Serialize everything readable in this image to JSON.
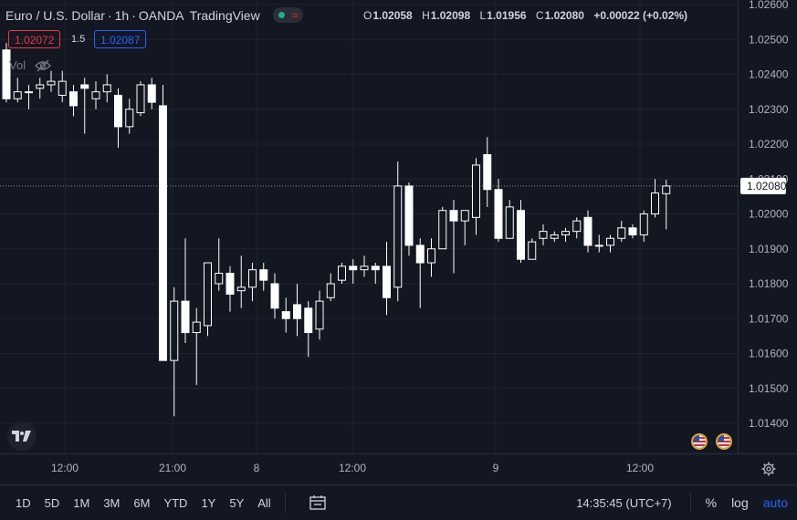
{
  "header": {
    "symbol": "Euro / U.S. Dollar",
    "interval": "1h",
    "broker": "OANDA",
    "platform": "TradingView"
  },
  "ohlc": {
    "o_label": "O",
    "o": "1.02058",
    "h_label": "H",
    "h": "1.02098",
    "l_label": "L",
    "l": "1.01956",
    "c_label": "C",
    "c": "1.02080",
    "change": "+0.00022 (+0.02%)"
  },
  "quote": {
    "bid": "1.02072",
    "spread": "1.5",
    "ask": "1.02087"
  },
  "volume": {
    "label": "Vol",
    "icon": "eye-off-icon"
  },
  "price_axis": {
    "ticks": [
      "1.02600",
      "1.02500",
      "1.02400",
      "1.02300",
      "1.02200",
      "1.02100",
      "1.02000",
      "1.01900",
      "1.01800",
      "1.01700",
      "1.01600",
      "1.01500",
      "1.01400"
    ],
    "current": "1.02080"
  },
  "time_axis": [
    "12:00",
    "21:00",
    "8",
    "12:00",
    "9",
    "12:00"
  ],
  "range_buttons": [
    "1D",
    "5D",
    "1M",
    "3M",
    "6M",
    "YTD",
    "1Y",
    "5Y",
    "All"
  ],
  "timezone": "14:35:45 (UTC+7)",
  "controls": {
    "percent": "%",
    "log": "log",
    "auto": "auto"
  },
  "colors": {
    "background": "#131722",
    "candle": "#ffffff",
    "grid": "#1f2330",
    "accent": "#2962ff",
    "bid": "#f23645"
  },
  "chart_data": {
    "type": "candlestick",
    "instrument": "EUR/USD",
    "ylim": [
      1.0135,
      1.0265
    ],
    "candles": [
      {
        "o": 1.0247,
        "h": 1.0249,
        "l": 1.0232,
        "c": 1.0233
      },
      {
        "o": 1.0233,
        "h": 1.0239,
        "l": 1.0232,
        "c": 1.0235
      },
      {
        "o": 1.0235,
        "h": 1.0237,
        "l": 1.023,
        "c": 1.0235
      },
      {
        "o": 1.0236,
        "h": 1.0239,
        "l": 1.0233,
        "c": 1.0237
      },
      {
        "o": 1.0237,
        "h": 1.0241,
        "l": 1.0235,
        "c": 1.0238
      },
      {
        "o": 1.0234,
        "h": 1.0241,
        "l": 1.0232,
        "c": 1.0238
      },
      {
        "o": 1.0235,
        "h": 1.0237,
        "l": 1.0228,
        "c": 1.0231
      },
      {
        "o": 1.0237,
        "h": 1.0239,
        "l": 1.0223,
        "c": 1.0236
      },
      {
        "o": 1.0233,
        "h": 1.0238,
        "l": 1.023,
        "c": 1.0235
      },
      {
        "o": 1.0235,
        "h": 1.024,
        "l": 1.0232,
        "c": 1.0237
      },
      {
        "o": 1.0234,
        "h": 1.0236,
        "l": 1.0219,
        "c": 1.0225
      },
      {
        "o": 1.0225,
        "h": 1.0233,
        "l": 1.0223,
        "c": 1.023
      },
      {
        "o": 1.0229,
        "h": 1.0238,
        "l": 1.0228,
        "c": 1.0237
      },
      {
        "o": 1.0237,
        "h": 1.0239,
        "l": 1.023,
        "c": 1.0232
      },
      {
        "o": 1.0231,
        "h": 1.0237,
        "l": 1.0158,
        "c": 1.0158
      },
      {
        "o": 1.0158,
        "h": 1.0179,
        "l": 1.0142,
        "c": 1.0175
      },
      {
        "o": 1.0175,
        "h": 1.0193,
        "l": 1.0163,
        "c": 1.0166
      },
      {
        "o": 1.0166,
        "h": 1.0173,
        "l": 1.0151,
        "c": 1.0169
      },
      {
        "o": 1.0168,
        "h": 1.0186,
        "l": 1.0165,
        "c": 1.0186
      },
      {
        "o": 1.018,
        "h": 1.0193,
        "l": 1.0178,
        "c": 1.0183
      },
      {
        "o": 1.0183,
        "h": 1.0185,
        "l": 1.0172,
        "c": 1.0177
      },
      {
        "o": 1.0178,
        "h": 1.0188,
        "l": 1.0173,
        "c": 1.0179
      },
      {
        "o": 1.0179,
        "h": 1.0186,
        "l": 1.0175,
        "c": 1.0184
      },
      {
        "o": 1.0184,
        "h": 1.0186,
        "l": 1.0178,
        "c": 1.0181
      },
      {
        "o": 1.018,
        "h": 1.0183,
        "l": 1.017,
        "c": 1.0173
      },
      {
        "o": 1.0172,
        "h": 1.0176,
        "l": 1.0166,
        "c": 1.017
      },
      {
        "o": 1.0174,
        "h": 1.018,
        "l": 1.0165,
        "c": 1.017
      },
      {
        "o": 1.0173,
        "h": 1.0175,
        "l": 1.0159,
        "c": 1.0166
      },
      {
        "o": 1.0167,
        "h": 1.0178,
        "l": 1.0164,
        "c": 1.0175
      },
      {
        "o": 1.0176,
        "h": 1.0183,
        "l": 1.0175,
        "c": 1.018
      },
      {
        "o": 1.0181,
        "h": 1.0186,
        "l": 1.018,
        "c": 1.0185
      },
      {
        "o": 1.0185,
        "h": 1.0187,
        "l": 1.018,
        "c": 1.0184
      },
      {
        "o": 1.0184,
        "h": 1.0188,
        "l": 1.0182,
        "c": 1.0185
      },
      {
        "o": 1.0185,
        "h": 1.0186,
        "l": 1.018,
        "c": 1.0184
      },
      {
        "o": 1.0185,
        "h": 1.0192,
        "l": 1.0171,
        "c": 1.0176
      },
      {
        "o": 1.0179,
        "h": 1.0215,
        "l": 1.0175,
        "c": 1.0208
      },
      {
        "o": 1.0208,
        "h": 1.0209,
        "l": 1.0188,
        "c": 1.0191
      },
      {
        "o": 1.0191,
        "h": 1.0193,
        "l": 1.0173,
        "c": 1.0186
      },
      {
        "o": 1.0186,
        "h": 1.0193,
        "l": 1.0182,
        "c": 1.019
      },
      {
        "o": 1.019,
        "h": 1.0202,
        "l": 1.019,
        "c": 1.0201
      },
      {
        "o": 1.0201,
        "h": 1.0204,
        "l": 1.0183,
        "c": 1.0198
      },
      {
        "o": 1.0198,
        "h": 1.0201,
        "l": 1.0191,
        "c": 1.0201
      },
      {
        "o": 1.0199,
        "h": 1.0216,
        "l": 1.0194,
        "c": 1.0214
      },
      {
        "o": 1.0217,
        "h": 1.0222,
        "l": 1.0202,
        "c": 1.0207
      },
      {
        "o": 1.0207,
        "h": 1.021,
        "l": 1.0192,
        "c": 1.0193
      },
      {
        "o": 1.0193,
        "h": 1.0204,
        "l": 1.0193,
        "c": 1.0202
      },
      {
        "o": 1.0201,
        "h": 1.0204,
        "l": 1.0186,
        "c": 1.0187
      },
      {
        "o": 1.0187,
        "h": 1.0193,
        "l": 1.0187,
        "c": 1.0192
      },
      {
        "o": 1.0193,
        "h": 1.0197,
        "l": 1.0191,
        "c": 1.0195
      },
      {
        "o": 1.0193,
        "h": 1.0195,
        "l": 1.0192,
        "c": 1.0194
      },
      {
        "o": 1.0194,
        "h": 1.0196,
        "l": 1.0192,
        "c": 1.0195
      },
      {
        "o": 1.0195,
        "h": 1.0199,
        "l": 1.0193,
        "c": 1.0198
      },
      {
        "o": 1.0199,
        "h": 1.0201,
        "l": 1.0189,
        "c": 1.0191
      },
      {
        "o": 1.0191,
        "h": 1.0194,
        "l": 1.0189,
        "c": 1.0191
      },
      {
        "o": 1.0191,
        "h": 1.0194,
        "l": 1.0189,
        "c": 1.0193
      },
      {
        "o": 1.0193,
        "h": 1.0198,
        "l": 1.0192,
        "c": 1.0196
      },
      {
        "o": 1.0196,
        "h": 1.0197,
        "l": 1.0193,
        "c": 1.0194
      },
      {
        "o": 1.0194,
        "h": 1.0201,
        "l": 1.0192,
        "c": 1.02
      },
      {
        "o": 1.02,
        "h": 1.021,
        "l": 1.0199,
        "c": 1.0206
      },
      {
        "o": 1.02058,
        "h": 1.02098,
        "l": 1.01956,
        "c": 1.0208
      }
    ]
  }
}
